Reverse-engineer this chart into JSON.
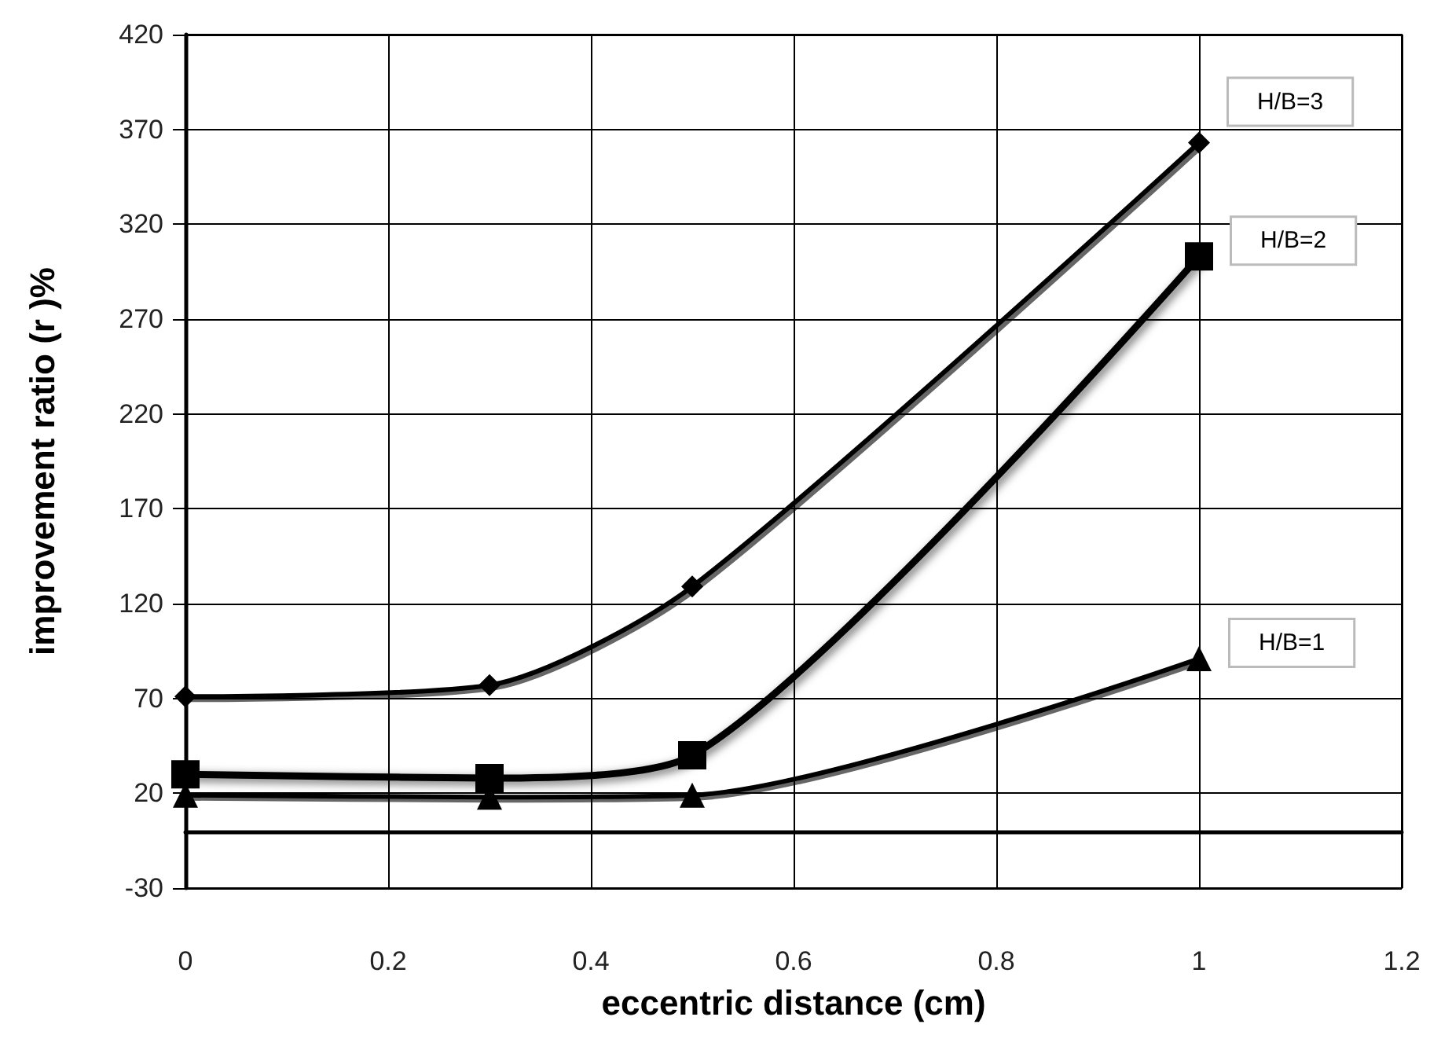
{
  "chart_data": {
    "type": "line",
    "xlabel": "eccentric distance (cm)",
    "ylabel": "improvement ratio (r )%",
    "x": [
      0,
      0.3,
      0.5,
      1
    ],
    "series": [
      {
        "name": "H/B=3",
        "color": "#000000",
        "marker": "diamond",
        "values": [
          71,
          77,
          129,
          363
        ]
      },
      {
        "name": "H/B=2",
        "color": "#000000",
        "marker": "square",
        "values": [
          30,
          28,
          40,
          303
        ]
      },
      {
        "name": "H/B=1",
        "color": "#000000",
        "marker": "triangle",
        "values": [
          19,
          18,
          19,
          91
        ]
      }
    ],
    "xlim": [
      0,
      1.2
    ],
    "xticks": [
      0,
      0.2,
      0.4,
      0.6,
      0.8,
      1,
      1.2
    ],
    "ylim": [
      -30,
      420
    ],
    "yticks": [
      -30,
      20,
      70,
      120,
      170,
      220,
      270,
      320,
      370,
      420
    ],
    "grid": true,
    "legend": false,
    "line_style": "solid"
  }
}
